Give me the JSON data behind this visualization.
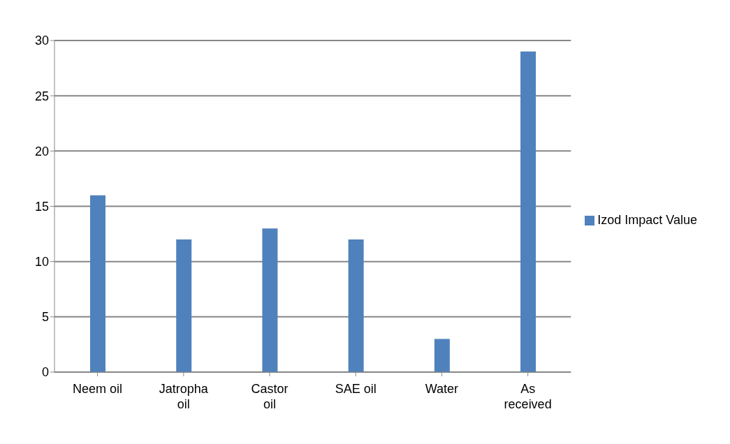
{
  "chart_data": {
    "type": "bar",
    "categories": [
      "Neem oil",
      "Jatropha oil",
      "Castor oil",
      "SAE oil",
      "Water",
      "As received"
    ],
    "series": [
      {
        "name": "Izod Impact Value",
        "color": "#4f81bd",
        "values": [
          16,
          12,
          13,
          12,
          3,
          29
        ]
      }
    ],
    "ylim": [
      0,
      30
    ],
    "yticks": [
      0,
      5,
      10,
      15,
      20,
      25,
      30
    ],
    "grid": "y",
    "legend": "right"
  }
}
